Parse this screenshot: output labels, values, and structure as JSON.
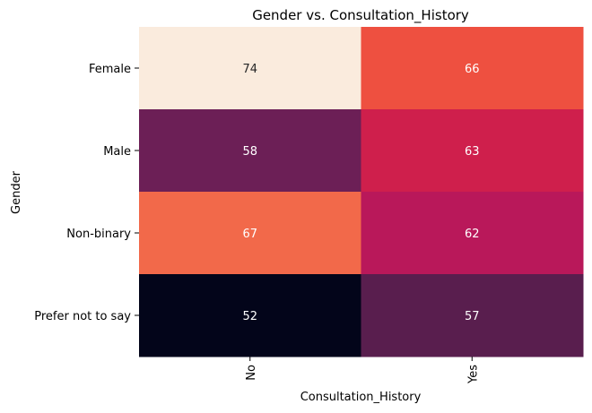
{
  "chart_data": {
    "type": "heatmap",
    "title": "Gender vs. Consultation_History",
    "xlabel": "Consultation_History",
    "ylabel": "Gender",
    "x_categories": [
      "No",
      "Yes"
    ],
    "y_categories": [
      "Female",
      "Male",
      "Non-binary",
      "Prefer not to say"
    ],
    "values": [
      [
        74,
        66
      ],
      [
        58,
        63
      ],
      [
        67,
        62
      ],
      [
        52,
        57
      ]
    ],
    "colorbar": false,
    "colors": {
      "Female|No": "#FAEBDD",
      "Female|Yes": "#EE5040",
      "Male|No": "#6C1F56",
      "Male|Yes": "#CF1F4C",
      "Non-binary|No": "#F2694A",
      "Non-binary|Yes": "#B9185A",
      "Prefer not to say|No": "#03051A",
      "Prefer not to say|Yes": "#591E4E"
    },
    "label_colors": {
      "light": "#262626",
      "dark": "#ffffff"
    }
  }
}
